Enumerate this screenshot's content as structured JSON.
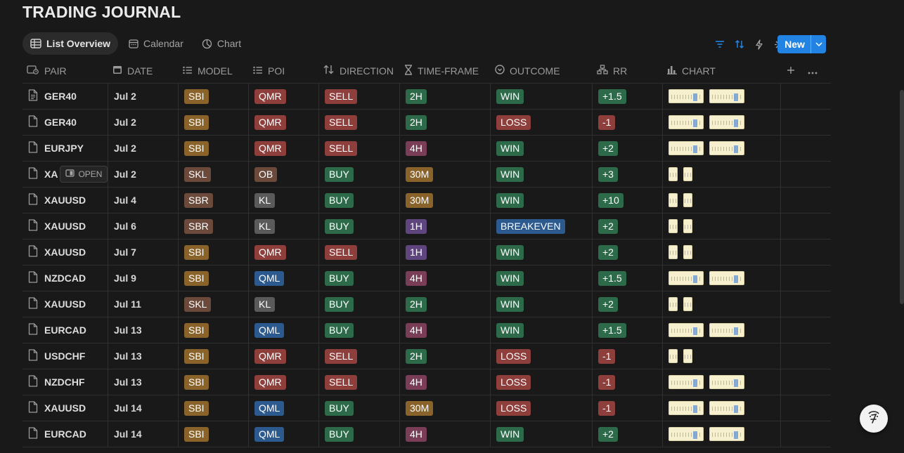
{
  "page": {
    "title": "TRADING JOURNAL"
  },
  "views": [
    {
      "label": "List Overview",
      "icon": "table-icon",
      "active": true
    },
    {
      "label": "Calendar",
      "icon": "calendar-icon",
      "active": false
    },
    {
      "label": "Chart",
      "icon": "pie-chart-icon",
      "active": false
    }
  ],
  "toolbar": {
    "new_label": "New",
    "icons": [
      "filter-icon",
      "sort-icon",
      "lightning-icon",
      "sparkle-icon",
      "search-icon",
      "settings-sliders-icon"
    ],
    "accent_color": "#2383e2"
  },
  "columns": [
    {
      "label": "PAIR",
      "icon": "title-icon"
    },
    {
      "label": "DATE",
      "icon": "calendar-icon"
    },
    {
      "label": "MODEL",
      "icon": "list-icon"
    },
    {
      "label": "POI",
      "icon": "list-icon"
    },
    {
      "label": "DIRECTION",
      "icon": "arrows-icon"
    },
    {
      "label": "TIME-FRAME",
      "icon": "hourglass-icon"
    },
    {
      "label": "OUTCOME",
      "icon": "status-icon"
    },
    {
      "label": "RR",
      "icon": "formula-icon"
    },
    {
      "label": "CHART",
      "icon": "bar-chart-icon"
    }
  ],
  "open_label": "OPEN",
  "tag_colors": {
    "SBI": "#89632a",
    "SKL": "#6b4a3b",
    "SBR": "#6b4a3b",
    "QMR": "#8e3e3b",
    "QML": "#2c5a8e",
    "OB": "#6b4a3b",
    "KL": "#5a5a5a",
    "SELL": "#8e3e3b",
    "BUY": "#2d6a4a",
    "2H": "#2d6a4a",
    "4H": "#7a3d58",
    "30M": "#89632a",
    "1H": "#5e457e",
    "WIN": "#2d6a4a",
    "LOSS": "#8e3e3b",
    "BREAKEVEN": "#2c5a8e",
    "rr_pos": "#2d6a4a",
    "rr_neg": "#8e3e3b"
  },
  "rows": [
    {
      "pair": "GER40",
      "date": "Jul 2",
      "model": "SBI",
      "poi": "QMR",
      "direction": "SELL",
      "timeframe": "2H",
      "outcome": "WIN",
      "rr": "+1.5",
      "charts": "wide"
    },
    {
      "pair": "GER40",
      "date": "Jul 2",
      "model": "SBI",
      "poi": "QMR",
      "direction": "SELL",
      "timeframe": "2H",
      "outcome": "LOSS",
      "rr": "-1",
      "charts": "wide"
    },
    {
      "pair": "EURJPY",
      "date": "Jul 2",
      "model": "SBI",
      "poi": "QMR",
      "direction": "SELL",
      "timeframe": "4H",
      "outcome": "WIN",
      "rr": "+2",
      "charts": "wide"
    },
    {
      "pair": "XA",
      "date": "Jul 2",
      "model": "SKL",
      "poi": "OB",
      "direction": "BUY",
      "timeframe": "30M",
      "outcome": "WIN",
      "rr": "+3",
      "charts": "narrow",
      "hover": true
    },
    {
      "pair": "XAUUSD",
      "date": "Jul 4",
      "model": "SBR",
      "poi": "KL",
      "direction": "BUY",
      "timeframe": "30M",
      "outcome": "WIN",
      "rr": "+10",
      "charts": "narrow"
    },
    {
      "pair": "XAUUSD",
      "date": "Jul 6",
      "model": "SBR",
      "poi": "KL",
      "direction": "BUY",
      "timeframe": "1H",
      "outcome": "BREAKEVEN",
      "rr": "+2",
      "charts": "narrow"
    },
    {
      "pair": "XAUUSD",
      "date": "Jul 7",
      "model": "SBI",
      "poi": "QMR",
      "direction": "SELL",
      "timeframe": "1H",
      "outcome": "WIN",
      "rr": "+2",
      "charts": "narrow"
    },
    {
      "pair": "NZDCAD",
      "date": "Jul 9",
      "model": "SBI",
      "poi": "QML",
      "direction": "BUY",
      "timeframe": "4H",
      "outcome": "WIN",
      "rr": "+1.5",
      "charts": "wide"
    },
    {
      "pair": "XAUUSD",
      "date": "Jul 11",
      "model": "SKL",
      "poi": "KL",
      "direction": "BUY",
      "timeframe": "2H",
      "outcome": "WIN",
      "rr": "+2",
      "charts": "narrow"
    },
    {
      "pair": "EURCAD",
      "date": "Jul 13",
      "model": "SBI",
      "poi": "QML",
      "direction": "BUY",
      "timeframe": "4H",
      "outcome": "WIN",
      "rr": "+1.5",
      "charts": "wide"
    },
    {
      "pair": "USDCHF",
      "date": "Jul 13",
      "model": "SBI",
      "poi": "QMR",
      "direction": "SELL",
      "timeframe": "2H",
      "outcome": "LOSS",
      "rr": "-1",
      "charts": "narrow"
    },
    {
      "pair": "NZDCHF",
      "date": "Jul 13",
      "model": "SBI",
      "poi": "QMR",
      "direction": "SELL",
      "timeframe": "4H",
      "outcome": "LOSS",
      "rr": "-1",
      "charts": "wide"
    },
    {
      "pair": "XAUUSD",
      "date": "Jul 14",
      "model": "SBI",
      "poi": "QML",
      "direction": "BUY",
      "timeframe": "30M",
      "outcome": "LOSS",
      "rr": "-1",
      "charts": "wide"
    },
    {
      "pair": "EURCAD",
      "date": "Jul 14",
      "model": "SBI",
      "poi": "QML",
      "direction": "BUY",
      "timeframe": "4H",
      "outcome": "WIN",
      "rr": "+2",
      "charts": "wide"
    }
  ]
}
